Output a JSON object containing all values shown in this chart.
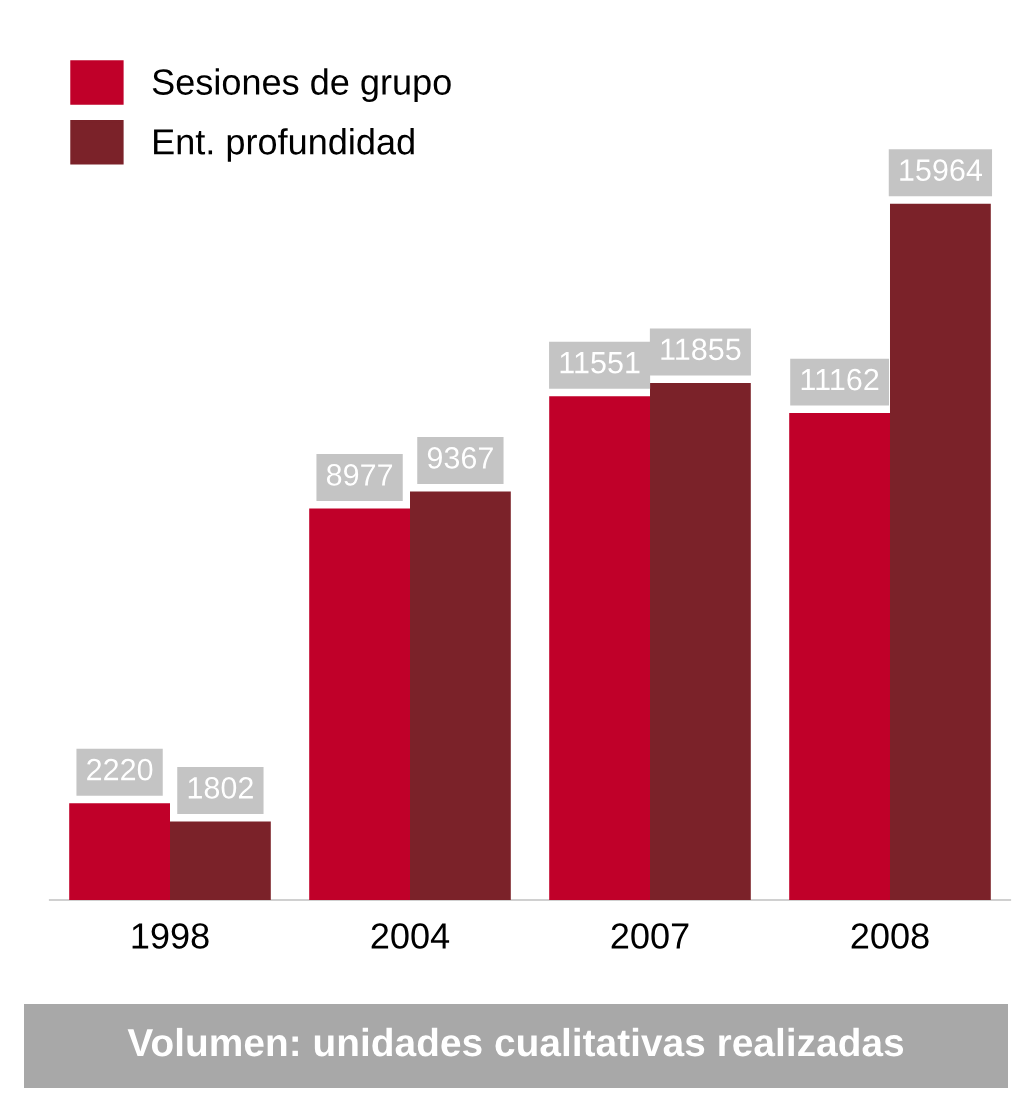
{
  "chart_data": {
    "type": "bar",
    "categories": [
      "1998",
      "2004",
      "2007",
      "2008"
    ],
    "series": [
      {
        "name": "Sesiones de grupo",
        "color": "#c00029",
        "values": [
          2220,
          8977,
          11551,
          11162
        ]
      },
      {
        "name": "Ent. profundidad",
        "color": "#7b2229",
        "values": [
          1802,
          9367,
          11855,
          15964
        ]
      }
    ],
    "data_labels": true,
    "legend": "top left",
    "grid": false,
    "annotations": [
      "Volumen: unidades cualitativas realizadas"
    ]
  }
}
